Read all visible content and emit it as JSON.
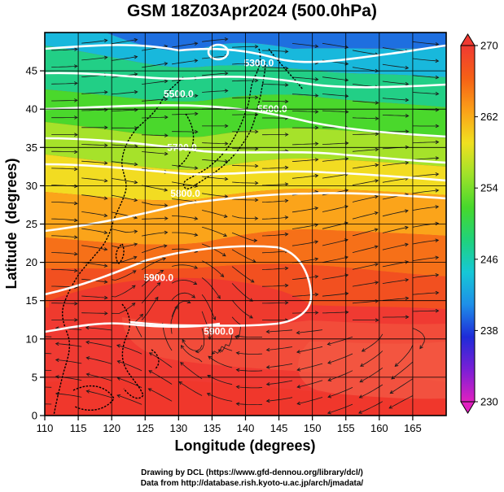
{
  "title": "GSM 18Z03Apr2024 (500.0hPa)",
  "credits": {
    "line1": "Drawing by DCL (https://www.gfd-dennou.org/library/dcl/)",
    "line2": "Data from http://database.rish.kyoto-u.ac.jp/arch/jmadata/"
  },
  "chart_data": {
    "type": "heatmap",
    "xlabel": "Longitude (degrees)",
    "ylabel": "Latitude  (degrees)",
    "xlim": [
      110,
      170
    ],
    "ylim": [
      0,
      50
    ],
    "xticks": [
      110,
      115,
      120,
      125,
      130,
      135,
      140,
      145,
      150,
      155,
      160,
      165
    ],
    "yticks": [
      0,
      5,
      10,
      15,
      20,
      25,
      30,
      35,
      40,
      45
    ],
    "colorbar": {
      "min": 230,
      "max": 270,
      "ticks": [
        230,
        238,
        246,
        254,
        262,
        270
      ],
      "colors": [
        "#e020c0",
        "#7a1fd6",
        "#1e2bd8",
        "#1e8fe8",
        "#16c8d6",
        "#20d27a",
        "#46d82c",
        "#9ee22a",
        "#f0e020",
        "#fba018",
        "#f56016",
        "#f03a32"
      ]
    },
    "contour_labels": [
      {
        "text": "5900.0",
        "lon": 136,
        "lat": 11
      },
      {
        "text": "5900.0",
        "lon": 127,
        "lat": 18
      },
      {
        "text": "5800.0",
        "lon": 131,
        "lat": 29
      },
      {
        "text": "5700.0",
        "lon": 130.5,
        "lat": 35
      },
      {
        "text": "5500.0",
        "lon": 130,
        "lat": 42
      },
      {
        "text": "5500.0",
        "lon": 144,
        "lat": 40
      },
      {
        "text": "5300.0",
        "lon": 142,
        "lat": 46
      }
    ]
  }
}
